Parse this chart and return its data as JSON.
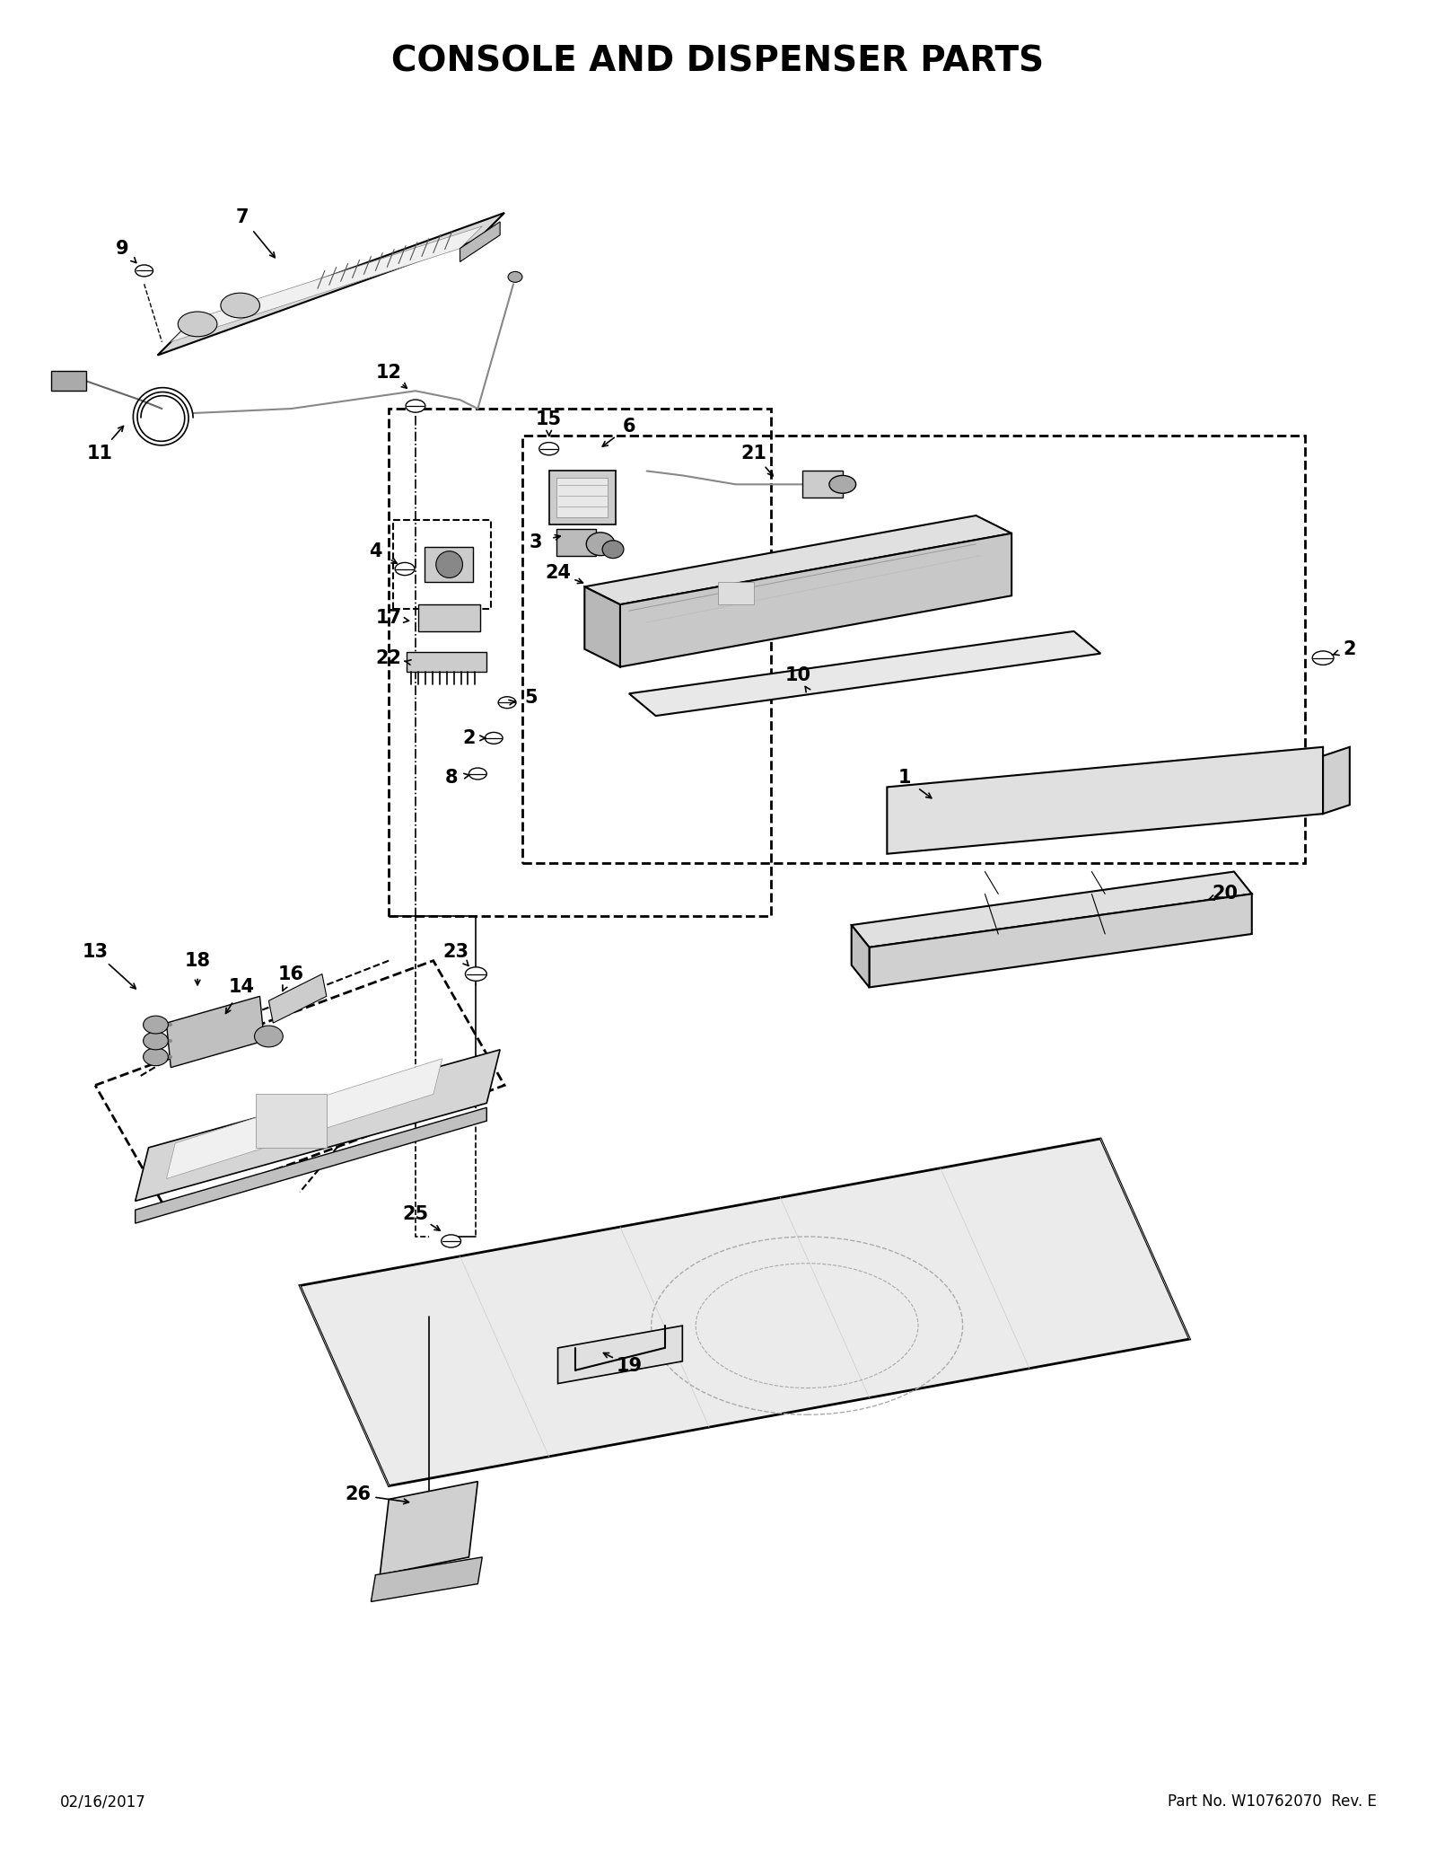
{
  "title": "CONSOLE AND DISPENSER PARTS",
  "title_fontsize": 28,
  "title_fontweight": "bold",
  "footer_left": "02/16/2017",
  "footer_right": "Part No. W10762070  Rev. E",
  "footer_fontsize": 12,
  "bg_color": "#ffffff",
  "line_color": "#000000",
  "figsize": [
    16.0,
    20.7
  ],
  "dpi": 100
}
